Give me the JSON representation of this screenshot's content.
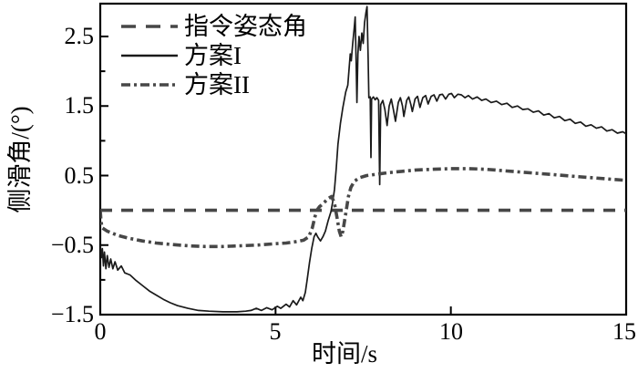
{
  "chart_data": {
    "type": "line",
    "title": "",
    "xlabel": "时间/s",
    "ylabel": "侧滑角/(°)",
    "xlim": [
      0,
      15
    ],
    "ylim": [
      -1.5,
      2.972
    ],
    "grid": false,
    "legend_position": "upper-left",
    "axis_color": "#000000",
    "x_ticks": [
      {
        "value": 0,
        "label": "0"
      },
      {
        "value": 5,
        "label": "5"
      },
      {
        "value": 10,
        "label": "10"
      },
      {
        "value": 15,
        "label": "15"
      }
    ],
    "y_ticks": [
      {
        "value": 2.5,
        "label": "2.5"
      },
      {
        "value": 1.5,
        "label": "1.5"
      },
      {
        "value": 0.5,
        "label": "0.5"
      },
      {
        "value": -0.5,
        "label": "−0.5"
      },
      {
        "value": -1.5,
        "label": "−1.5"
      }
    ],
    "y_minor_ticks": [
      -1.0,
      0.0,
      1.0,
      2.0
    ],
    "series": [
      {
        "name": "指令姿态角",
        "style": "dashed",
        "color": "#474747",
        "width": 3.6,
        "points": [
          [
            0,
            0
          ],
          [
            15,
            0
          ]
        ]
      },
      {
        "name": "方案I",
        "style": "solid",
        "color": "#1a1a1a",
        "width": 1.7,
        "points": [
          [
            0,
            -0.5
          ],
          [
            0.03,
            -0.68
          ],
          [
            0.06,
            -0.55
          ],
          [
            0.09,
            -0.8
          ],
          [
            0.12,
            -0.6
          ],
          [
            0.16,
            -0.84
          ],
          [
            0.2,
            -0.65
          ],
          [
            0.25,
            -0.82
          ],
          [
            0.3,
            -0.7
          ],
          [
            0.36,
            -0.84
          ],
          [
            0.42,
            -0.74
          ],
          [
            0.5,
            -0.86
          ],
          [
            0.6,
            -0.8
          ],
          [
            0.7,
            -0.9
          ],
          [
            0.85,
            -0.93
          ],
          [
            1.0,
            -1.0
          ],
          [
            1.2,
            -1.08
          ],
          [
            1.4,
            -1.16
          ],
          [
            1.6,
            -1.22
          ],
          [
            1.8,
            -1.28
          ],
          [
            2.0,
            -1.33
          ],
          [
            2.2,
            -1.37
          ],
          [
            2.5,
            -1.41
          ],
          [
            2.8,
            -1.44
          ],
          [
            3.1,
            -1.45
          ],
          [
            3.5,
            -1.46
          ],
          [
            3.9,
            -1.46
          ],
          [
            4.15,
            -1.45
          ],
          [
            4.3,
            -1.44
          ],
          [
            4.45,
            -1.41
          ],
          [
            4.6,
            -1.44
          ],
          [
            4.75,
            -1.4
          ],
          [
            4.9,
            -1.43
          ],
          [
            5.05,
            -1.38
          ],
          [
            5.15,
            -1.41
          ],
          [
            5.3,
            -1.35
          ],
          [
            5.4,
            -1.39
          ],
          [
            5.5,
            -1.3
          ],
          [
            5.6,
            -1.36
          ],
          [
            5.72,
            -1.25
          ],
          [
            5.78,
            -1.3
          ],
          [
            5.85,
            -1.18
          ],
          [
            5.9,
            -1.0
          ],
          [
            5.97,
            -0.75
          ],
          [
            6.03,
            -0.55
          ],
          [
            6.1,
            -0.38
          ],
          [
            6.15,
            -0.33
          ],
          [
            6.2,
            -0.38
          ],
          [
            6.28,
            -0.44
          ],
          [
            6.35,
            -0.38
          ],
          [
            6.42,
            -0.3
          ],
          [
            6.5,
            -0.15
          ],
          [
            6.58,
            -0.02
          ],
          [
            6.63,
            0.12
          ],
          [
            6.68,
            0.3
          ],
          [
            6.73,
            0.6
          ],
          [
            6.78,
            0.95
          ],
          [
            6.85,
            1.25
          ],
          [
            6.92,
            1.48
          ],
          [
            7.0,
            1.7
          ],
          [
            7.06,
            1.8
          ],
          [
            7.1,
            2.05
          ],
          [
            7.13,
            2.25
          ],
          [
            7.16,
            2.15
          ],
          [
            7.2,
            2.4
          ],
          [
            7.24,
            2.6
          ],
          [
            7.27,
            2.78
          ],
          [
            7.3,
            2.1
          ],
          [
            7.32,
            1.55
          ],
          [
            7.35,
            2.25
          ],
          [
            7.38,
            2.5
          ],
          [
            7.42,
            2.3
          ],
          [
            7.46,
            2.55
          ],
          [
            7.5,
            2.4
          ],
          [
            7.54,
            2.7
          ],
          [
            7.58,
            2.85
          ],
          [
            7.61,
            2.93
          ],
          [
            7.64,
            2.2
          ],
          [
            7.66,
            1.62
          ],
          [
            7.7,
            1.63
          ],
          [
            7.72,
            0.76
          ],
          [
            7.74,
            1.6
          ],
          [
            7.79,
            1.63
          ],
          [
            7.84,
            1.59
          ],
          [
            7.89,
            1.62
          ],
          [
            7.94,
            1.58
          ],
          [
            7.97,
            0.37
          ],
          [
            8.0,
            1.52
          ],
          [
            8.06,
            1.58
          ],
          [
            8.12,
            1.45
          ],
          [
            8.18,
            1.22
          ],
          [
            8.24,
            1.5
          ],
          [
            8.3,
            1.6
          ],
          [
            8.36,
            1.45
          ],
          [
            8.42,
            1.28
          ],
          [
            8.5,
            1.55
          ],
          [
            8.56,
            1.62
          ],
          [
            8.62,
            1.5
          ],
          [
            8.66,
            1.35
          ],
          [
            8.74,
            1.58
          ],
          [
            8.8,
            1.63
          ],
          [
            8.86,
            1.52
          ],
          [
            8.9,
            1.42
          ],
          [
            8.98,
            1.6
          ],
          [
            9.05,
            1.64
          ],
          [
            9.12,
            1.48
          ],
          [
            9.2,
            1.62
          ],
          [
            9.28,
            1.65
          ],
          [
            9.35,
            1.53
          ],
          [
            9.44,
            1.64
          ],
          [
            9.52,
            1.66
          ],
          [
            9.6,
            1.57
          ],
          [
            9.68,
            1.66
          ],
          [
            9.76,
            1.67
          ],
          [
            9.85,
            1.6
          ],
          [
            9.94,
            1.67
          ],
          [
            10.02,
            1.68
          ],
          [
            10.1,
            1.62
          ],
          [
            10.2,
            1.67
          ],
          [
            10.3,
            1.66
          ],
          [
            10.4,
            1.62
          ],
          [
            10.5,
            1.65
          ],
          [
            10.62,
            1.6
          ],
          [
            10.75,
            1.63
          ],
          [
            10.88,
            1.58
          ],
          [
            11.0,
            1.6
          ],
          [
            11.15,
            1.55
          ],
          [
            11.3,
            1.57
          ],
          [
            11.45,
            1.52
          ],
          [
            11.6,
            1.54
          ],
          [
            11.75,
            1.48
          ],
          [
            11.9,
            1.5
          ],
          [
            12.05,
            1.45
          ],
          [
            12.2,
            1.46
          ],
          [
            12.35,
            1.41
          ],
          [
            12.5,
            1.43
          ],
          [
            12.65,
            1.37
          ],
          [
            12.8,
            1.39
          ],
          [
            12.95,
            1.33
          ],
          [
            13.1,
            1.35
          ],
          [
            13.25,
            1.29
          ],
          [
            13.4,
            1.31
          ],
          [
            13.55,
            1.25
          ],
          [
            13.7,
            1.27
          ],
          [
            13.85,
            1.21
          ],
          [
            14.0,
            1.23
          ],
          [
            14.15,
            1.18
          ],
          [
            14.3,
            1.2
          ],
          [
            14.45,
            1.14
          ],
          [
            14.6,
            1.16
          ],
          [
            14.75,
            1.11
          ],
          [
            14.9,
            1.13
          ],
          [
            15.0,
            1.1
          ]
        ]
      },
      {
        "name": "方案II",
        "style": "dashdot",
        "color": "#474747",
        "width": 3.6,
        "points": [
          [
            0,
            0
          ],
          [
            0.02,
            -0.15
          ],
          [
            0.05,
            -0.25
          ],
          [
            0.2,
            -0.3
          ],
          [
            0.5,
            -0.36
          ],
          [
            0.8,
            -0.4
          ],
          [
            1.2,
            -0.44
          ],
          [
            1.6,
            -0.47
          ],
          [
            2.0,
            -0.49
          ],
          [
            2.5,
            -0.51
          ],
          [
            3.0,
            -0.52
          ],
          [
            3.5,
            -0.52
          ],
          [
            4.0,
            -0.51
          ],
          [
            4.5,
            -0.5
          ],
          [
            5.0,
            -0.48
          ],
          [
            5.3,
            -0.47
          ],
          [
            5.6,
            -0.45
          ],
          [
            5.8,
            -0.43
          ],
          [
            5.95,
            -0.38
          ],
          [
            6.05,
            -0.25
          ],
          [
            6.12,
            -0.1
          ],
          [
            6.18,
            0.0
          ],
          [
            6.25,
            0.05
          ],
          [
            6.32,
            0.08
          ],
          [
            6.4,
            0.12
          ],
          [
            6.5,
            0.17
          ],
          [
            6.6,
            0.2
          ],
          [
            6.68,
            0.1
          ],
          [
            6.75,
            -0.1
          ],
          [
            6.82,
            -0.3
          ],
          [
            6.87,
            -0.38
          ],
          [
            6.92,
            -0.3
          ],
          [
            7.0,
            -0.05
          ],
          [
            7.08,
            0.2
          ],
          [
            7.15,
            0.33
          ],
          [
            7.25,
            0.42
          ],
          [
            7.4,
            0.47
          ],
          [
            7.6,
            0.5
          ],
          [
            7.9,
            0.52
          ],
          [
            8.2,
            0.54
          ],
          [
            8.6,
            0.56
          ],
          [
            9.0,
            0.58
          ],
          [
            9.5,
            0.59
          ],
          [
            10.0,
            0.6
          ],
          [
            10.5,
            0.6
          ],
          [
            11.0,
            0.59
          ],
          [
            11.5,
            0.57
          ],
          [
            12.0,
            0.55
          ],
          [
            12.5,
            0.53
          ],
          [
            13.0,
            0.51
          ],
          [
            13.5,
            0.49
          ],
          [
            14.0,
            0.47
          ],
          [
            14.5,
            0.45
          ],
          [
            15.0,
            0.43
          ]
        ]
      }
    ]
  }
}
